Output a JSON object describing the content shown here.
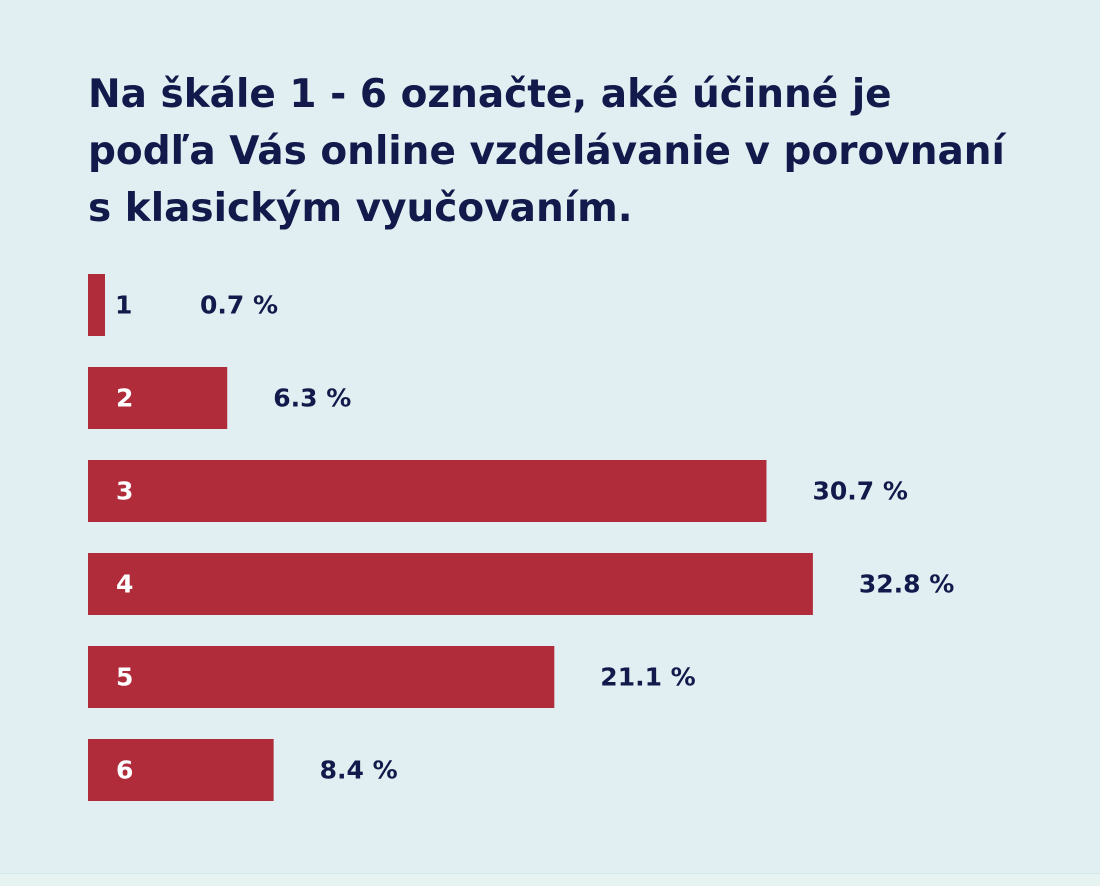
{
  "colors": {
    "background": "#e2eff2",
    "bar": "#b02c3b",
    "text": "#111a4a",
    "bar_label": "#ffffff"
  },
  "chart_data": {
    "type": "bar",
    "orientation": "horizontal",
    "title": "Na škále 1 - 6 označte, aké účinné je podľa Vás online vzdelávanie v porovnaní s klasickým vyučovaním.",
    "categories": [
      "1",
      "2",
      "3",
      "4",
      "5",
      "6"
    ],
    "values": [
      0.7,
      6.3,
      30.7,
      32.8,
      21.1,
      8.4
    ],
    "value_labels": [
      "0.7 %",
      "6.3 %",
      "30.7 %",
      "32.8 %",
      "21.1 %",
      "8.4 %"
    ],
    "unit": "%",
    "grid": false,
    "legend": "none"
  }
}
